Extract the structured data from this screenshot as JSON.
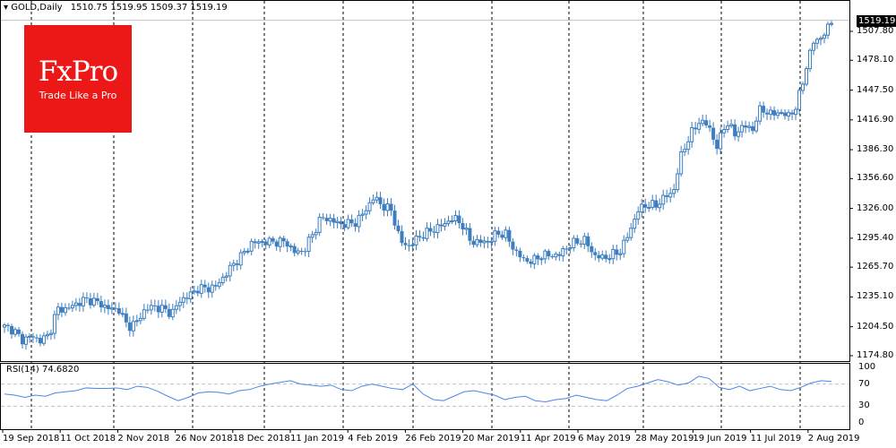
{
  "header": {
    "symbol": "GOLD,Daily",
    "open": "1510.75",
    "high": "1519.95",
    "low": "1509.37",
    "close": "1519.19"
  },
  "logo": {
    "brand": "FxPro",
    "tagline": "Trade Like a Pro",
    "color": "#ec1818"
  },
  "indicator": {
    "label": "RSI(14) 74.6820"
  },
  "colors": {
    "candle": "#3c7ec0",
    "rsi_line": "#4a86e8",
    "grid_dash": "#000000",
    "level": "#c0c0c0"
  },
  "chart_data": [
    {
      "type": "candlestick",
      "title": "GOLD,Daily",
      "ylim": [
        1174.8,
        1519.19
      ],
      "y_ticks": [
        "1507.80",
        "1478.10",
        "1447.50",
        "1416.90",
        "1386.30",
        "1356.60",
        "1326.00",
        "1295.40",
        "1265.70",
        "1235.10",
        "1204.50",
        "1174.80"
      ],
      "x_ticks": [
        "19 Sep 2018",
        "11 Oct 2018",
        "2 Nov 2018",
        "26 Nov 2018",
        "18 Dec 2018",
        "11 Jan 2019",
        "4 Feb 2019",
        "26 Feb 2019",
        "20 Mar 2019",
        "11 Apr 2019",
        "6 May 2019",
        "28 May 2019",
        "19 Jun 2019",
        "11 Jul 2019",
        "2 Aug 2019"
      ],
      "current_price": "1519.19",
      "close": [
        1204.2,
        1201.4,
        1190.4,
        1195.0,
        1190.4,
        1195.0,
        1222.6,
        1222.6,
        1227.2,
        1231.8,
        1231.8,
        1227.2,
        1222.6,
        1222.6,
        1204.2,
        1208.8,
        1222.6,
        1225.4,
        1222.6,
        1218.0,
        1231.8,
        1236.4,
        1243.8,
        1243.8,
        1245.6,
        1256.6,
        1268.6,
        1277.8,
        1289.8,
        1291.6,
        1291.6,
        1291.6,
        1291.6,
        1280.6,
        1282.4,
        1299.0,
        1316.4,
        1314.6,
        1310.0,
        1310.0,
        1311.8,
        1323.8,
        1337.6,
        1328.4,
        1323.8,
        1291.6,
        1287.0,
        1296.2,
        1300.8,
        1305.4,
        1310.0,
        1316.4,
        1310.0,
        1291.6,
        1291.6,
        1291.6,
        1300.8,
        1299.0,
        1282.4,
        1273.2,
        1271.4,
        1277.8,
        1277.8,
        1277.8,
        1287.0,
        1291.6,
        1293.4,
        1277.8,
        1275.0,
        1277.8,
        1282.4,
        1300.8,
        1323.8,
        1330.2,
        1328.4,
        1337.6,
        1342.2,
        1383.6,
        1402.0,
        1415.8,
        1411.2,
        1388.2,
        1415.8,
        1402.0,
        1411.2,
        1406.6,
        1429.6,
        1422.2,
        1425.0,
        1420.6,
        1429.6,
        1466.4,
        1498.6,
        1501.4,
        1519.19
      ]
    },
    {
      "type": "line",
      "title": "RSI(14) 74.6820",
      "ylim": [
        0,
        100
      ],
      "y_ticks": [
        "100",
        "70",
        "30",
        "0"
      ],
      "levels": [
        70,
        30
      ],
      "values": [
        52,
        50,
        46,
        50,
        48,
        54,
        56,
        58,
        63,
        62,
        62,
        63,
        60,
        66,
        64,
        57,
        48,
        40,
        46,
        54,
        56,
        55,
        52,
        58,
        60,
        66,
        70,
        73,
        76,
        70,
        68,
        66,
        68,
        60,
        58,
        66,
        70,
        66,
        62,
        60,
        70,
        52,
        42,
        40,
        48,
        56,
        58,
        54,
        50,
        42,
        46,
        48,
        40,
        38,
        42,
        44,
        50,
        46,
        42,
        40,
        50,
        62,
        66,
        72,
        78,
        74,
        68,
        72,
        84,
        80,
        64,
        60,
        66,
        58,
        62,
        66,
        60,
        58,
        64,
        72,
        76,
        74.68
      ]
    }
  ]
}
